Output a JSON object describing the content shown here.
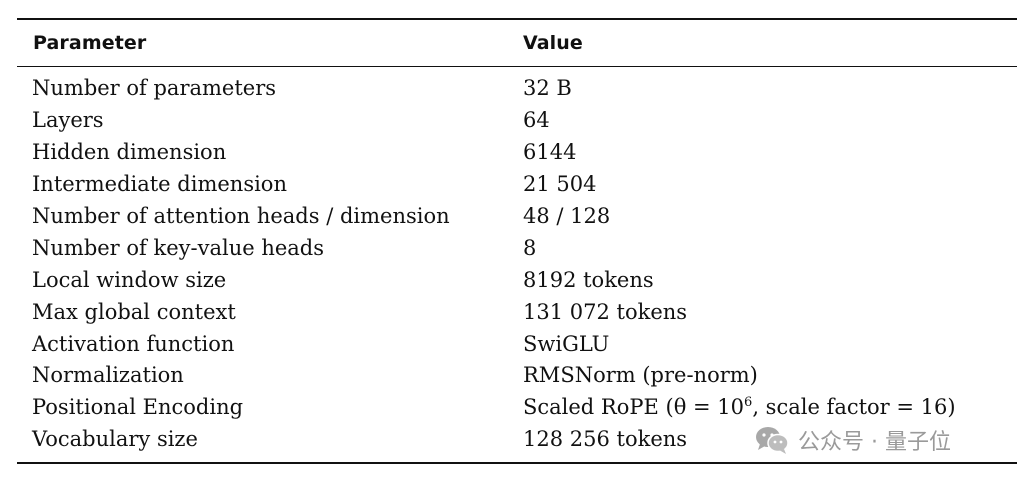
{
  "table": {
    "headers": {
      "parameter": "Parameter",
      "value": "Value"
    },
    "rows": [
      {
        "param": "Number of parameters",
        "value": "32 B"
      },
      {
        "param": "Layers",
        "value": "64"
      },
      {
        "param": "Hidden dimension",
        "value": "6144"
      },
      {
        "param": "Intermediate dimension",
        "value": "21 504"
      },
      {
        "param": "Number of attention heads / dimension",
        "value": "48 / 128"
      },
      {
        "param": "Number of key-value heads",
        "value": "8"
      },
      {
        "param": "Local window size",
        "value": "8192 tokens"
      },
      {
        "param": "Max global context",
        "value": "131 072 tokens"
      },
      {
        "param": "Activation function",
        "value": "SwiGLU"
      },
      {
        "param": "Normalization",
        "value": "RMSNorm (pre-norm)"
      },
      {
        "param": "Positional Encoding",
        "value_before": "Scaled RoPE (θ = 10",
        "value_sup": "6",
        "value_after": ", scale factor = 16)"
      },
      {
        "param": "Vocabulary size",
        "value": "128 256 tokens"
      }
    ]
  },
  "watermark": {
    "text": "公众号 · 量子位",
    "icon": "wechat-icon"
  }
}
